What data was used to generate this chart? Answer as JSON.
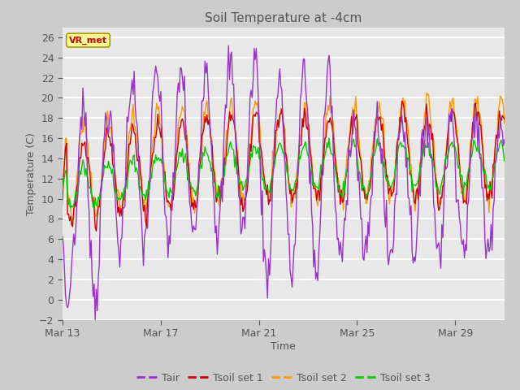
{
  "title": "Soil Temperature at -4cm",
  "xlabel": "Time",
  "ylabel": "Temperature (C)",
  "ylim": [
    -2,
    27
  ],
  "yticks": [
    -2,
    0,
    2,
    4,
    6,
    8,
    10,
    12,
    14,
    16,
    18,
    20,
    22,
    24,
    26
  ],
  "xtick_positions": [
    0,
    4,
    8,
    12,
    16
  ],
  "xtick_labels": [
    "Mar 13",
    "Mar 17",
    "Mar 21",
    "Mar 25",
    "Mar 29"
  ],
  "xlim": [
    0,
    18
  ],
  "colors": {
    "Tair": "#9933cc",
    "Tsoil1": "#cc0000",
    "Tsoil2": "#ff9900",
    "Tsoil3": "#00cc00"
  },
  "legend_labels": [
    "Tair",
    "Tsoil set 1",
    "Tsoil set 2",
    "Tsoil set 3"
  ],
  "annotation_text": "VR_met",
  "annotation_color": "#cc0000",
  "annotation_bg": "#ffff99",
  "annotation_edge": "#aa9900",
  "fig_bg": "#cccccc",
  "ax_bg": "#e8e8e8",
  "grid_color": "#ffffff",
  "tick_color": "#555555",
  "title_color": "#555555",
  "line_width": 1.0,
  "days": 18
}
